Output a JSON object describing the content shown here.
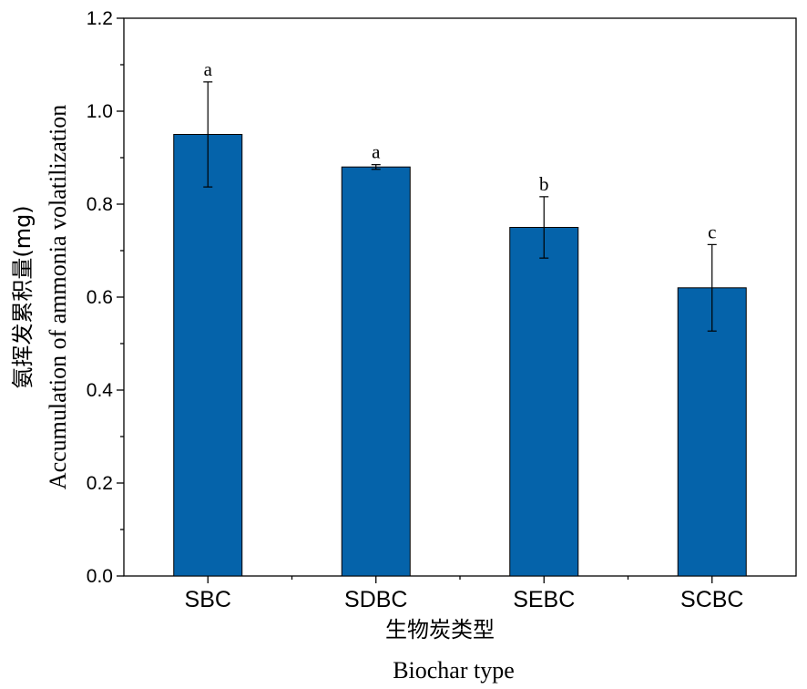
{
  "chart_data": {
    "type": "bar",
    "categories": [
      "SBC",
      "SDBC",
      "SEBC",
      "SCBC"
    ],
    "values": [
      0.95,
      0.88,
      0.75,
      0.62
    ],
    "errors": [
      0.113,
      0.005,
      0.066,
      0.093
    ],
    "significance": [
      "a",
      "a",
      "b",
      "c"
    ],
    "ylim": [
      0.0,
      1.2
    ],
    "yticks": [
      "0.0",
      "0.2",
      "0.4",
      "0.6",
      "0.8",
      "1.0",
      "1.2"
    ],
    "ytick_values": [
      0.0,
      0.2,
      0.4,
      0.6,
      0.8,
      1.0,
      1.2
    ],
    "xlabel_cn": "生物炭类型",
    "xlabel": "Biochar type",
    "ylabel_cn": "氨挥发累积量(mg)",
    "ylabel": "Accumulation of ammonia volatilization",
    "bar_color": "#0563AA",
    "grid": false,
    "legend": "none"
  }
}
